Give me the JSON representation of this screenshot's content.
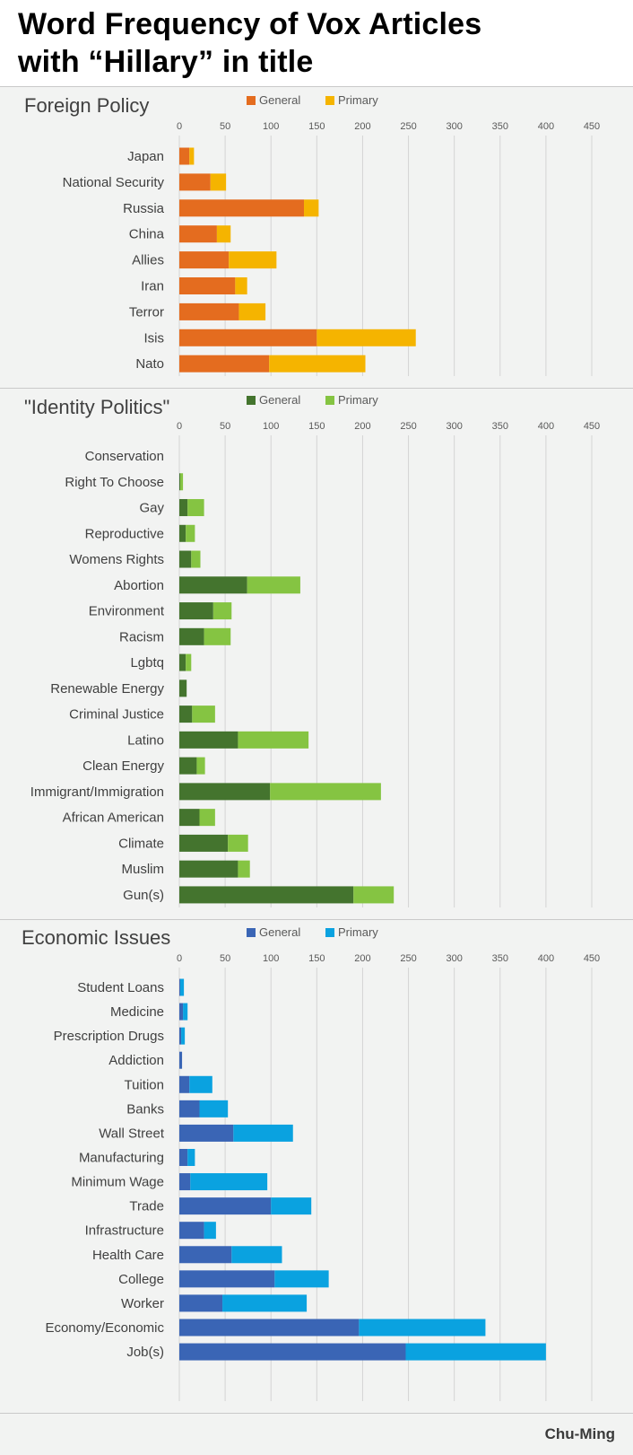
{
  "header": {
    "title_line1": "Word Frequency of Vox Articles",
    "title_line2": "with “Hillary” in title"
  },
  "credit": "Chu-Ming",
  "chart_data": [
    {
      "type": "bar",
      "stacked": true,
      "orientation": "horizontal",
      "title": "Foreign Policy",
      "xlim": [
        0,
        450
      ],
      "ticks": [
        0,
        50,
        100,
        150,
        200,
        250,
        300,
        350,
        400,
        450
      ],
      "grid": true,
      "legend": "top",
      "categories": [
        "Japan",
        "National Security",
        "Russia",
        "China",
        "Allies",
        "Iran",
        "Terror",
        "Isis",
        "Nato"
      ],
      "series": [
        {
          "name": "General",
          "color": "#e46c1f",
          "values": [
            11,
            34,
            136,
            41,
            54,
            61,
            65,
            150,
            98
          ]
        },
        {
          "name": "Primary",
          "color": "#f5b400",
          "values": [
            5,
            17,
            16,
            15,
            52,
            13,
            29,
            108,
            105
          ]
        }
      ]
    },
    {
      "type": "bar",
      "stacked": true,
      "orientation": "horizontal",
      "title": "\"Identity Politics\"",
      "xlim": [
        0,
        450
      ],
      "ticks": [
        0,
        50,
        100,
        150,
        200,
        250,
        300,
        350,
        400,
        450
      ],
      "grid": true,
      "legend": "top",
      "categories": [
        "Conservation",
        "Right To Choose",
        "Gay",
        "Reproductive",
        "Womens Rights",
        "Abortion",
        "Environment",
        "Racism",
        "Lgbtq",
        "Renewable Energy",
        "Criminal Justice",
        "Latino",
        "Clean Energy",
        "Immigrant/Immigration",
        "African American",
        "Climate",
        "Muslim",
        "Gun(s)"
      ],
      "series": [
        {
          "name": "General",
          "color": "#44742e",
          "values": [
            0,
            1,
            9,
            7,
            13,
            74,
            37,
            27,
            7,
            8,
            14,
            64,
            19,
            99,
            22,
            53,
            64,
            190
          ]
        },
        {
          "name": "Primary",
          "color": "#85c442",
          "values": [
            0,
            3,
            18,
            10,
            10,
            58,
            20,
            29,
            6,
            0,
            25,
            77,
            9,
            121,
            17,
            22,
            13,
            44
          ]
        }
      ]
    },
    {
      "type": "bar",
      "stacked": true,
      "orientation": "horizontal",
      "title": "Economic Issues",
      "xlim": [
        0,
        450
      ],
      "ticks": [
        0,
        50,
        100,
        150,
        200,
        250,
        300,
        350,
        400,
        450
      ],
      "grid": true,
      "legend": "top",
      "categories": [
        "Student Loans",
        "Medicine",
        "Prescription Drugs",
        "Addiction",
        "Tuition",
        "Banks",
        "Wall Street",
        "Manufacturing",
        "Minimum Wage",
        "Trade",
        "Infrastructure",
        "Health Care",
        "College",
        "Worker",
        "Economy/Economic",
        "Job(s)"
      ],
      "series": [
        {
          "name": "General",
          "color": "#3a65b5",
          "values": [
            1,
            4,
            2,
            3,
            11,
            22,
            59,
            9,
            12,
            100,
            27,
            57,
            104,
            47,
            196,
            247
          ]
        },
        {
          "name": "Primary",
          "color": "#0aa2e0",
          "values": [
            4,
            5,
            4,
            0,
            25,
            31,
            65,
            8,
            84,
            44,
            13,
            55,
            59,
            92,
            138,
            153
          ]
        }
      ]
    }
  ]
}
